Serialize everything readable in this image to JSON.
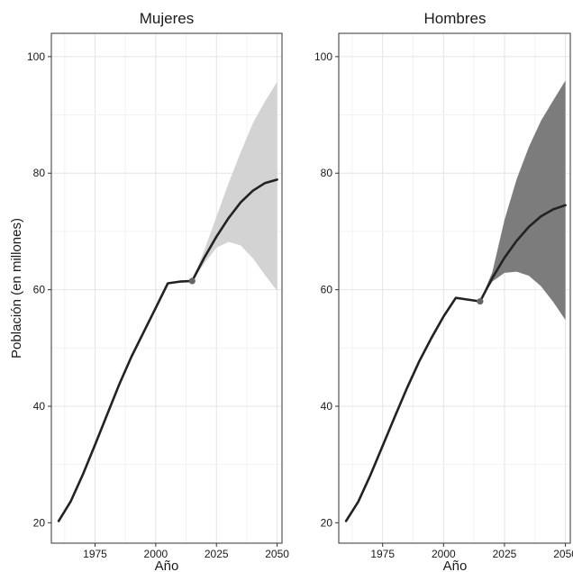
{
  "chart_data": {
    "type": "line",
    "xlabel": "Año",
    "ylabel": "Población (en millones)",
    "xlim": [
      1957,
      2052
    ],
    "ylim": [
      16.5,
      104
    ],
    "xticks": [
      1975,
      2000,
      2025,
      2050
    ],
    "yticks": [
      20,
      40,
      60,
      80,
      100
    ],
    "grid": true,
    "panels": [
      {
        "title": "Mujeres",
        "band_color": "#d3d3d3",
        "line_color": "#222222",
        "point_color": "#666666",
        "estimate": {
          "x": [
            1960,
            1965,
            1970,
            1975,
            1980,
            1985,
            1990,
            1995,
            2000,
            2005,
            2010,
            2015
          ],
          "y": [
            20.3,
            23.7,
            28.3,
            33.4,
            38.6,
            43.8,
            48.5,
            52.7,
            56.9,
            61.1,
            61.4,
            61.5
          ]
        },
        "projection": {
          "x": [
            2015,
            2020,
            2025,
            2030,
            2035,
            2040,
            2045,
            2050
          ],
          "median": [
            61.5,
            65.5,
            69.1,
            72.3,
            75.0,
            77.0,
            78.3,
            78.9
          ],
          "lower": [
            61.5,
            64.5,
            67.2,
            68.2,
            67.6,
            65.4,
            62.5,
            59.8
          ],
          "upper": [
            61.5,
            66.8,
            72.5,
            78.3,
            83.6,
            88.6,
            92.3,
            95.7
          ]
        },
        "last_observed": {
          "x": 2015,
          "y": 61.5
        }
      },
      {
        "title": "Hombres",
        "band_color": "#7c7c7c",
        "line_color": "#222222",
        "point_color": "#666666",
        "estimate": {
          "x": [
            1960,
            1965,
            1970,
            1975,
            1980,
            1985,
            1990,
            1995,
            2000,
            2005,
            2010,
            2015
          ],
          "y": [
            20.3,
            23.6,
            28.2,
            33.2,
            38.2,
            43.1,
            47.7,
            51.7,
            55.4,
            58.6,
            58.3,
            58.0
          ]
        },
        "projection": {
          "x": [
            2015,
            2020,
            2025,
            2030,
            2035,
            2040,
            2045,
            2050
          ],
          "median": [
            58.0,
            62.0,
            65.5,
            68.4,
            70.8,
            72.6,
            73.8,
            74.5
          ],
          "lower": [
            58.0,
            61.4,
            62.9,
            63.1,
            62.4,
            60.6,
            57.9,
            54.8
          ],
          "upper": [
            58.0,
            63.0,
            72.0,
            79.0,
            84.5,
            89.0,
            92.5,
            95.9
          ]
        },
        "last_observed": {
          "x": 2015,
          "y": 58.0
        }
      }
    ]
  }
}
